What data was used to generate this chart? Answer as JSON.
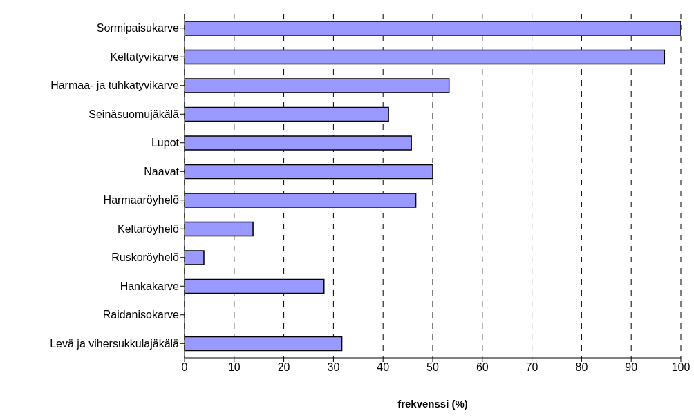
{
  "chart_data": {
    "type": "bar",
    "orientation": "horizontal",
    "xlabel": "frekvenssi (%)",
    "categories": [
      "Sormipaisukarve",
      "Keltatyvikarve",
      "Harmaa- ja tuhkatyvikarve",
      "Seinäsuomujäkälä",
      "Lupot",
      "Naavat",
      "Harmaaröyhelö",
      "Keltaröyhelö",
      "Ruskoröyhelö",
      "Hankakarve",
      "Raidanisokarve",
      "Levä ja vihersukkulajäkälä"
    ],
    "values": [
      100,
      96.7,
      53.3,
      41.1,
      45.7,
      50,
      46.6,
      13.8,
      3.9,
      28.1,
      0,
      31.7
    ],
    "color": "#9999ff",
    "xlim": [
      0,
      100
    ],
    "xticks": [
      0,
      10,
      20,
      30,
      40,
      50,
      60,
      70,
      80,
      90,
      100
    ],
    "grid": "x",
    "legend": false
  }
}
